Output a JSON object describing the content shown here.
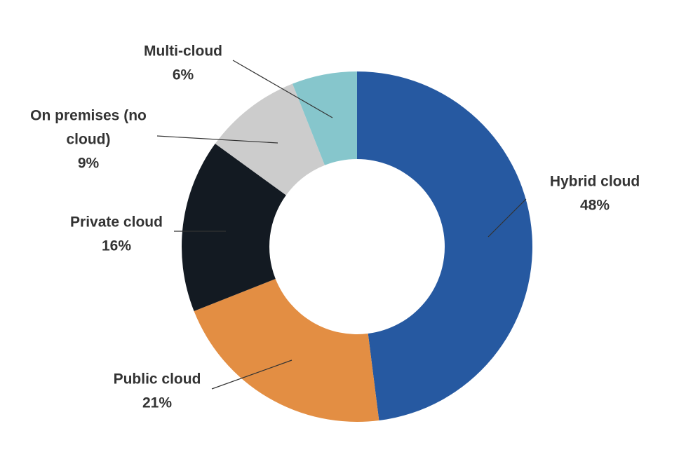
{
  "chart_data": {
    "type": "pie",
    "variant": "donut",
    "title": "",
    "legend": "none",
    "slices": [
      {
        "label": "Hybrid cloud",
        "value": 48,
        "value_label": "48%",
        "color": "#2659a1"
      },
      {
        "label": "Public cloud",
        "value": 21,
        "value_label": "21%",
        "color": "#e38e43"
      },
      {
        "label": "Private cloud",
        "value": 16,
        "value_label": "16%",
        "color": "#131a22"
      },
      {
        "label": "On premises (no cloud)",
        "label_lines": [
          "On premises (no",
          "cloud)"
        ],
        "value": 9,
        "value_label": "9%",
        "color": "#cccccc"
      },
      {
        "label": "Multi-cloud",
        "value": 6,
        "value_label": "6%",
        "color": "#86c6cc"
      }
    ],
    "leader_line_color": "#333333"
  }
}
